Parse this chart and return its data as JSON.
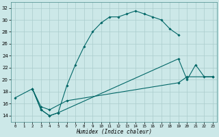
{
  "bg_color": "#cce8e8",
  "grid_color": "#aacccc",
  "line_color": "#006666",
  "xlabel": "Humidex (Indice chaleur)",
  "xlim": [
    -0.5,
    23.5
  ],
  "ylim": [
    13,
    33
  ],
  "yticks": [
    14,
    16,
    18,
    20,
    22,
    24,
    26,
    28,
    30,
    32
  ],
  "xticks": [
    0,
    1,
    2,
    3,
    4,
    5,
    6,
    7,
    8,
    9,
    10,
    11,
    12,
    13,
    14,
    15,
    16,
    17,
    18,
    19,
    20,
    21,
    22,
    23
  ],
  "curves": [
    {
      "x": [
        2,
        3,
        4,
        5,
        6,
        7,
        8,
        9,
        10,
        11,
        12,
        13,
        14,
        15,
        16,
        17,
        18,
        19
      ],
      "y": [
        18.5,
        15.0,
        14.0,
        14.5,
        19.0,
        22.5,
        25.5,
        28.0,
        29.5,
        30.5,
        30.5,
        31.0,
        31.5,
        31.0,
        30.5,
        30.0,
        28.5,
        27.5
      ]
    },
    {
      "x": [
        2,
        3,
        4,
        5,
        19,
        20,
        21,
        22,
        23
      ],
      "y": [
        18.5,
        15.0,
        14.0,
        14.5,
        23.5,
        20.0,
        22.5,
        20.5,
        20.5
      ]
    },
    {
      "x": [
        0,
        2,
        3,
        4,
        6,
        19,
        20,
        23
      ],
      "y": [
        17.0,
        18.5,
        15.5,
        15.0,
        16.5,
        19.5,
        20.5,
        20.5
      ]
    }
  ]
}
